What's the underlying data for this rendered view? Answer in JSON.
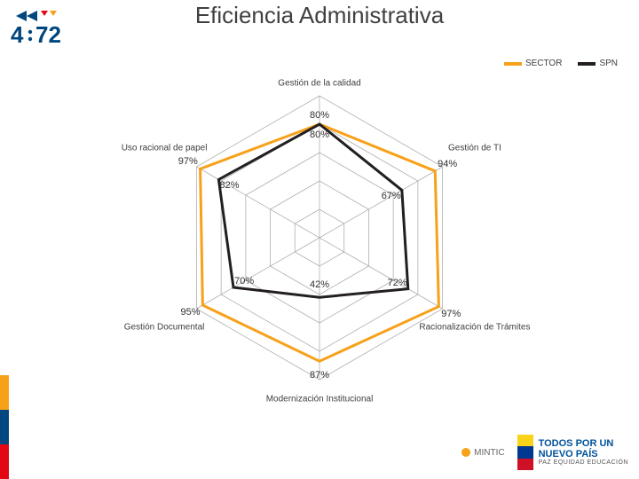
{
  "title": "Eficiencia Administrativa",
  "logo_472": {
    "blue": "#00467f",
    "red": "#e30613",
    "yellow": "#f7a11a",
    "text": "4·72",
    "text_color": "#00467f"
  },
  "legend": {
    "items": [
      {
        "label": "SECTOR",
        "color": "#f7a11a"
      },
      {
        "label": "SPN",
        "color": "#231f20"
      }
    ]
  },
  "radar": {
    "type": "radar",
    "background": "#ffffff",
    "grid_color": "#b0b0b0",
    "grid_fill": "#ffffff",
    "axis_color": "#b0b0b0",
    "rings": 5,
    "max_value": 100,
    "label_fontsize": 10,
    "data_label_fontsize": 11,
    "axes": [
      "Gestión de la calidad",
      "Gestión de TI",
      "Racionalización de Trámites",
      "Modernización Institucional",
      "Gestión Documental",
      "Uso racional de papel"
    ],
    "series": [
      {
        "name": "SECTOR",
        "color": "#f7a11a",
        "line_width": 3,
        "fill_opacity": 0,
        "values": [
          80,
          94,
          97,
          87,
          95,
          97
        ],
        "data_labels": [
          "80%",
          "94%",
          "97%",
          "87%",
          "95%",
          "97%"
        ]
      },
      {
        "name": "SPN",
        "color": "#231f20",
        "line_width": 3,
        "fill_opacity": 0,
        "values": [
          80,
          67,
          72,
          42,
          70,
          82
        ],
        "data_labels": [
          "80%",
          "67%",
          "72%",
          "42%",
          "70%",
          "82%"
        ]
      }
    ]
  },
  "left_bar_colors": [
    "#f7a11a",
    "#00467f",
    "#e30613"
  ],
  "bottom_right": {
    "mintic": "MINTIC",
    "campaign_lines": [
      "TODOS POR UN",
      "NUEVO PAÍS"
    ],
    "campaign_sub": "PAZ  EQUIDAD  EDUCACIÓN",
    "campaign_color": "#00529b",
    "flag_colors": [
      "#f7d417",
      "#003893",
      "#ce1126"
    ]
  }
}
